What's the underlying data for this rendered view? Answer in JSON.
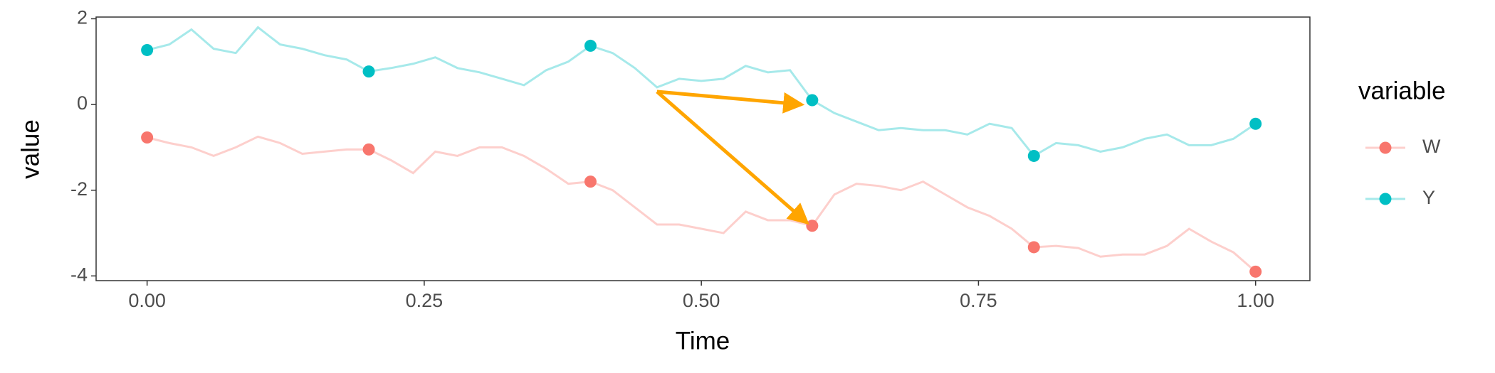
{
  "chart_data": {
    "type": "line",
    "x_label": "Time",
    "y_label": "value",
    "legend_title": "variable",
    "legend_position": "right",
    "grid": false,
    "line_alpha": 0.35,
    "xlim": [
      -0.046,
      1.049
    ],
    "ylim": [
      -4.11,
      2.04
    ],
    "xticks": [
      {
        "value": 0,
        "label": "0.00"
      },
      {
        "value": 0.25,
        "label": "0.25"
      },
      {
        "value": 0.5,
        "label": "0.50"
      },
      {
        "value": 0.75,
        "label": "0.75"
      },
      {
        "value": 1,
        "label": "1.00"
      }
    ],
    "yticks": [
      -4,
      -2,
      0,
      2
    ],
    "x": [
      0,
      0.02,
      0.04,
      0.06,
      0.08,
      0.1,
      0.12,
      0.14,
      0.16,
      0.18,
      0.2,
      0.22,
      0.24,
      0.26,
      0.28,
      0.3,
      0.32,
      0.34,
      0.36,
      0.38,
      0.4,
      0.42,
      0.44,
      0.46,
      0.48,
      0.5,
      0.52,
      0.54,
      0.56,
      0.58,
      0.6,
      0.62,
      0.64,
      0.66,
      0.68,
      0.7,
      0.72,
      0.74,
      0.76,
      0.78,
      0.8,
      0.82,
      0.84,
      0.86,
      0.88,
      0.9,
      0.92,
      0.94,
      0.96,
      0.98,
      1
    ],
    "series": [
      {
        "name": "W",
        "color": "#F8766D",
        "values": [
          -0.77,
          -0.9,
          -1.0,
          -1.2,
          -1.0,
          -0.75,
          -0.9,
          -1.15,
          -1.1,
          -1.05,
          -1.05,
          -1.3,
          -1.6,
          -1.1,
          -1.2,
          -1.0,
          -1.0,
          -1.2,
          -1.5,
          -1.85,
          -1.8,
          -2.0,
          -2.4,
          -2.8,
          -2.8,
          -2.9,
          -3.0,
          -2.5,
          -2.7,
          -2.7,
          -2.83,
          -2.1,
          -1.85,
          -1.9,
          -2.0,
          -1.8,
          -2.1,
          -2.4,
          -2.6,
          -2.9,
          -3.33,
          -3.3,
          -3.35,
          -3.55,
          -3.5,
          -3.5,
          -3.3,
          -2.9,
          -3.2,
          -3.45,
          -3.9
        ],
        "points": {
          "x": [
            0,
            0.2,
            0.4,
            0.6,
            0.8,
            1
          ],
          "values": [
            -0.77,
            -1.05,
            -1.8,
            -2.83,
            -3.33,
            -3.9
          ]
        }
      },
      {
        "name": "Y",
        "color": "#00BFC4",
        "values": [
          1.27,
          1.4,
          1.75,
          1.3,
          1.2,
          1.8,
          1.4,
          1.3,
          1.15,
          1.05,
          0.77,
          0.85,
          0.95,
          1.1,
          0.85,
          0.75,
          0.6,
          0.45,
          0.8,
          1.0,
          1.37,
          1.2,
          0.85,
          0.4,
          0.6,
          0.55,
          0.6,
          0.9,
          0.75,
          0.8,
          0.1,
          -0.2,
          -0.4,
          -0.6,
          -0.55,
          -0.6,
          -0.6,
          -0.7,
          -0.45,
          -0.55,
          -1.2,
          -0.9,
          -0.95,
          -1.1,
          -1.0,
          -0.8,
          -0.7,
          -0.95,
          -0.95,
          -0.8,
          -0.45
        ],
        "points": {
          "x": [
            0,
            0.2,
            0.4,
            0.6,
            0.8,
            1
          ],
          "values": [
            1.27,
            0.77,
            1.37,
            0.1,
            -1.2,
            -0.45
          ]
        }
      }
    ],
    "arrows": {
      "color": "#FFA500",
      "items": [
        {
          "x": [
            0.46,
            0.59
          ],
          "y": [
            0.3,
            0.0
          ]
        },
        {
          "x": [
            0.46,
            0.595
          ],
          "y": [
            0.3,
            -2.75
          ]
        }
      ]
    }
  }
}
